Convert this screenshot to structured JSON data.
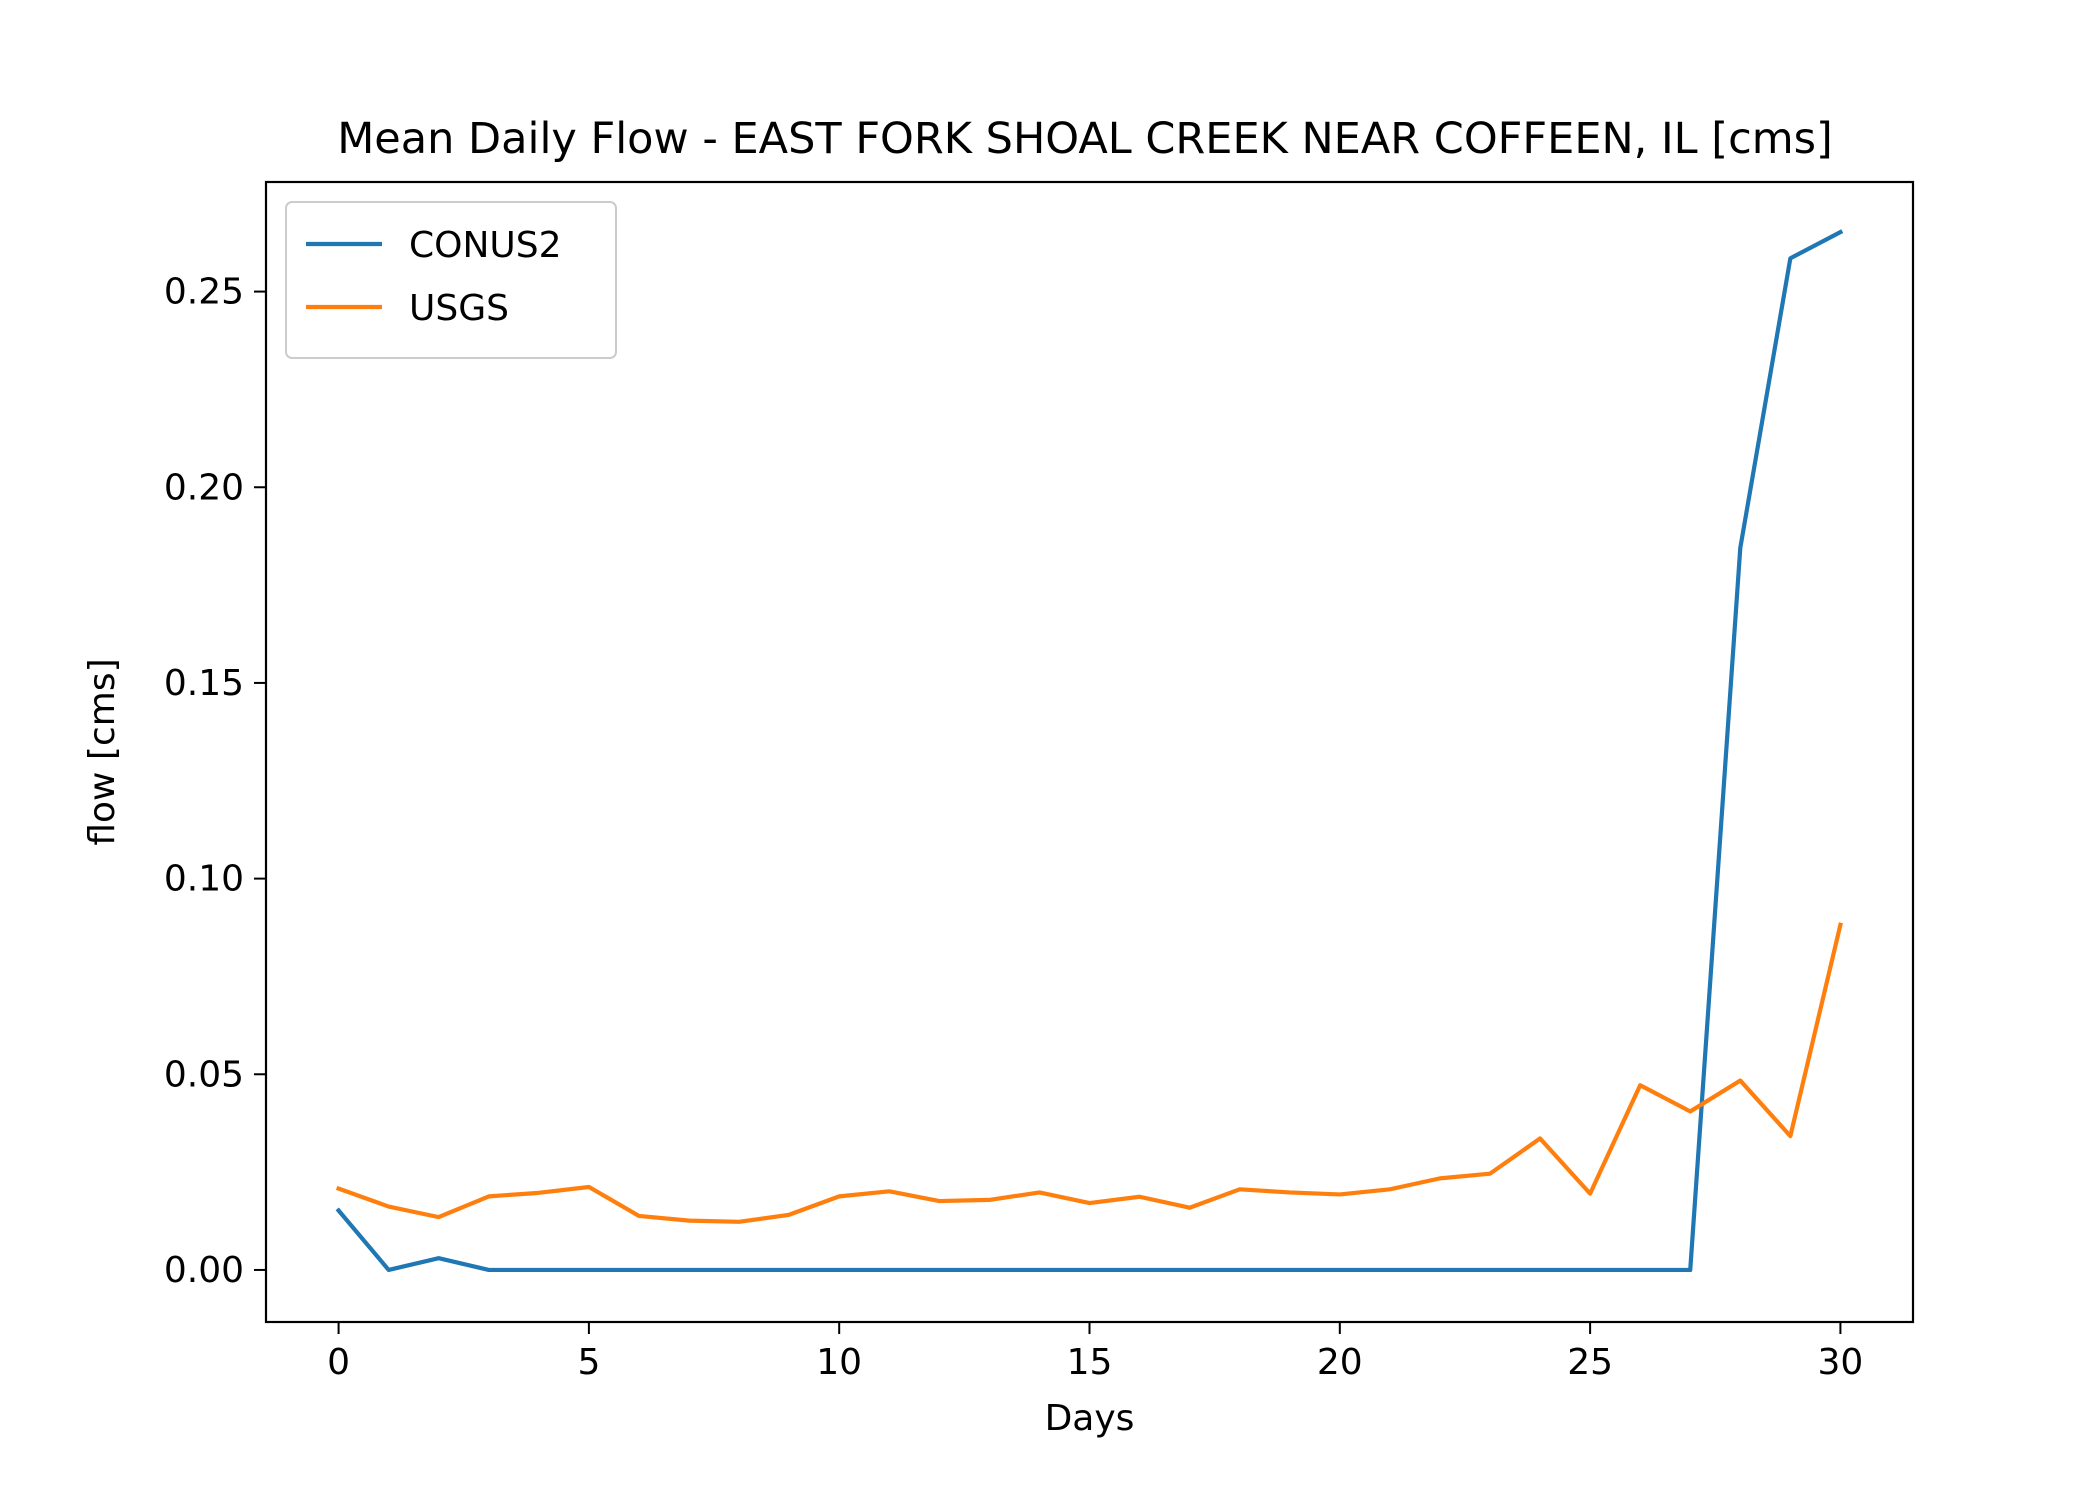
{
  "chart_data": {
    "type": "line",
    "title": "Mean Daily Flow - EAST FORK SHOAL CREEK NEAR COFFEEN, IL [cms]",
    "xlabel": "Days",
    "ylabel": "flow [cms]",
    "xlim": [
      -1.45,
      31.45
    ],
    "ylim": [
      -0.0133,
      0.278
    ],
    "xticks": [
      0,
      5,
      10,
      15,
      20,
      25,
      30
    ],
    "xtick_labels": [
      "0",
      "5",
      "10",
      "15",
      "20",
      "25",
      "30"
    ],
    "yticks": [
      0.0,
      0.05,
      0.1,
      0.15,
      0.2,
      0.25
    ],
    "ytick_labels": [
      "0.00",
      "0.05",
      "0.10",
      "0.15",
      "0.20",
      "0.25"
    ],
    "grid": false,
    "legend_position": "upper-left",
    "x": [
      0,
      1,
      2,
      3,
      4,
      5,
      6,
      7,
      8,
      9,
      10,
      11,
      12,
      13,
      14,
      15,
      16,
      17,
      18,
      19,
      20,
      21,
      22,
      23,
      24,
      25,
      26,
      27,
      28,
      29,
      30
    ],
    "series": [
      {
        "name": "CONUS2",
        "color": "#1f77b4",
        "values": [
          0.0152,
          0.0,
          0.003,
          0.0,
          0.0,
          0.0,
          0.0,
          0.0,
          0.0,
          0.0,
          0.0,
          0.0,
          0.0,
          0.0,
          0.0,
          0.0,
          0.0,
          0.0,
          0.0,
          0.0,
          0.0,
          0.0,
          0.0,
          0.0,
          0.0,
          0.0,
          0.0,
          0.0,
          0.1845,
          0.2585,
          0.2652
        ]
      },
      {
        "name": "USGS",
        "color": "#ff7f0e",
        "values": [
          0.0208,
          0.0162,
          0.0135,
          0.0188,
          0.0197,
          0.0212,
          0.0138,
          0.0126,
          0.0123,
          0.0141,
          0.0188,
          0.0201,
          0.0176,
          0.0179,
          0.0198,
          0.0171,
          0.0187,
          0.0159,
          0.0206,
          0.0198,
          0.0193,
          0.0206,
          0.0234,
          0.0246,
          0.0336,
          0.0195,
          0.0472,
          0.0405,
          0.0484,
          0.0342,
          0.0882
        ]
      }
    ]
  }
}
